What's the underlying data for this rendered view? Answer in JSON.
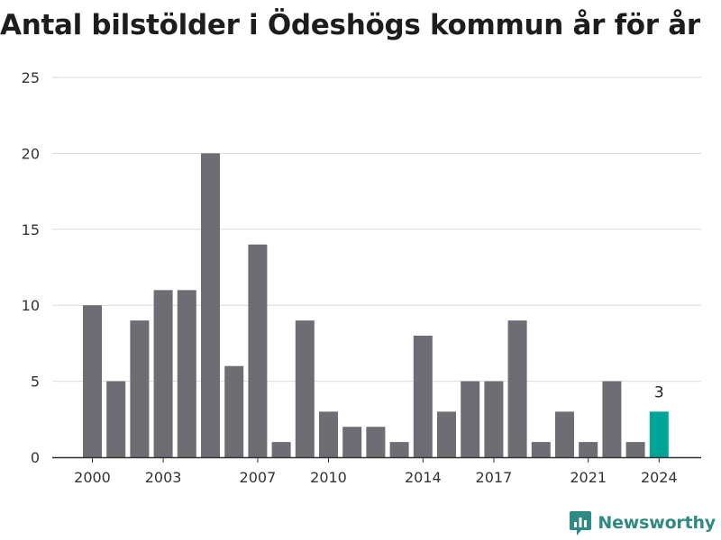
{
  "colors": {
    "bar": "#6e6d73",
    "highlight": "#00a398",
    "grid": "#d9d9d9",
    "axis": "#333333",
    "brand": "#2e8a82"
  },
  "brand": {
    "name": "Newsworthy",
    "icon": "newsworthy-logo-icon"
  },
  "chart_data": {
    "type": "bar",
    "title": "Antal bilstölder i Ödeshögs kommun år för år",
    "xlabel": "",
    "ylabel": "",
    "categories": [
      2000,
      2001,
      2002,
      2003,
      2004,
      2005,
      2006,
      2007,
      2008,
      2009,
      2010,
      2011,
      2012,
      2013,
      2014,
      2015,
      2016,
      2017,
      2018,
      2019,
      2020,
      2021,
      2022,
      2023,
      2024
    ],
    "values": [
      10,
      5,
      9,
      11,
      11,
      20,
      6,
      14,
      1,
      9,
      3,
      2,
      2,
      1,
      8,
      3,
      5,
      5,
      9,
      1,
      3,
      1,
      5,
      1,
      3
    ],
    "ylim": [
      0,
      25
    ],
    "yticks": [
      "0",
      "5",
      "10",
      "15",
      "20",
      "25"
    ],
    "xticks": [
      "2000",
      "2003",
      "2007",
      "2010",
      "2014",
      "2017",
      "2021",
      "2024"
    ],
    "highlight": {
      "category": 2024,
      "label": "3"
    },
    "grid": true,
    "legend": "none"
  }
}
